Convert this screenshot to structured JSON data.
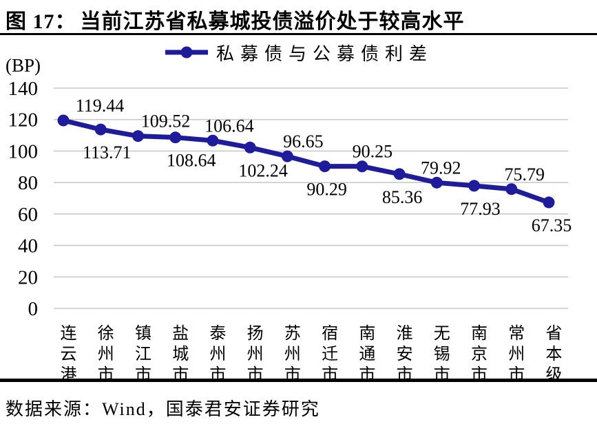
{
  "figure": {
    "number": "图 17：",
    "title": "当前江苏省私募城投债溢价处于较高水平",
    "source": "数据来源：Wind，国泰君安证券研究"
  },
  "chart_data": {
    "type": "line",
    "title": "私募债与公募债利差",
    "unit_label": "(BP)",
    "categories": [
      "连云港",
      "徐州市",
      "镇江市",
      "盐城市",
      "泰州市",
      "扬州市",
      "苏州市",
      "宿迁市",
      "南通市",
      "淮安市",
      "无锡市",
      "南京市",
      "常州市",
      "省本级"
    ],
    "series": [
      {
        "name": "私募债与公募债利差",
        "values": [
          119.44,
          113.71,
          109.52,
          108.64,
          106.64,
          102.24,
          96.65,
          90.29,
          90.25,
          85.36,
          79.92,
          77.93,
          75.79,
          67.35
        ]
      }
    ],
    "ylim": [
      0,
      140
    ],
    "yticks": [
      0,
      20,
      40,
      60,
      80,
      100,
      120,
      140
    ],
    "grid": true,
    "legend_position": "top",
    "data_labels": true,
    "colors": {
      "line": "#1e1c9a",
      "grid": "#c9c9c9",
      "text": "#000000"
    }
  }
}
